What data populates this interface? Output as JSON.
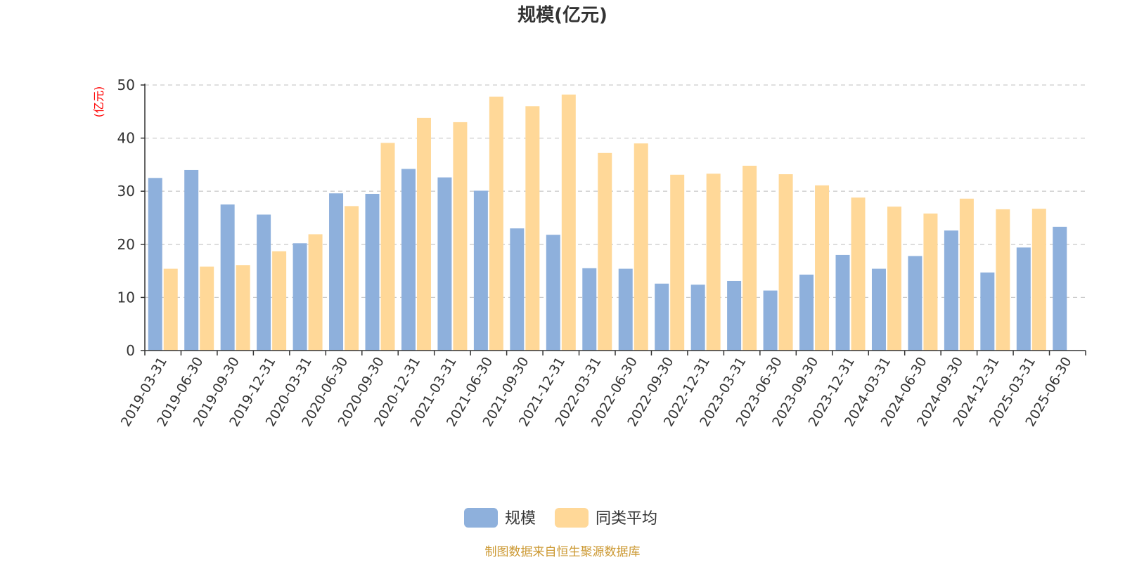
{
  "chart_data": {
    "type": "bar",
    "title": "规模(亿元)",
    "ylabel": "(亿元)",
    "ylim": [
      0,
      50
    ],
    "yticks": [
      0,
      10,
      20,
      30,
      40,
      50
    ],
    "grid": true,
    "legend_position": "bottom",
    "categories": [
      "2019-03-31",
      "2019-06-30",
      "2019-09-30",
      "2019-12-31",
      "2020-03-31",
      "2020-06-30",
      "2020-09-30",
      "2020-12-31",
      "2021-03-31",
      "2021-06-30",
      "2021-09-30",
      "2021-12-31",
      "2022-03-31",
      "2022-06-30",
      "2022-09-30",
      "2022-12-31",
      "2023-03-31",
      "2023-06-30",
      "2023-09-30",
      "2023-12-31",
      "2024-03-31",
      "2024-06-30",
      "2024-09-30",
      "2024-12-31",
      "2025-03-31",
      "2025-06-30"
    ],
    "series": [
      {
        "name": "规模",
        "color": "#8eb0dc",
        "values": [
          32.5,
          34.0,
          27.5,
          25.6,
          20.2,
          29.6,
          29.5,
          34.2,
          32.6,
          30.1,
          23.0,
          21.8,
          15.5,
          15.4,
          12.6,
          12.4,
          13.1,
          11.3,
          14.3,
          18.0,
          15.4,
          17.8,
          22.6,
          14.7,
          19.4,
          23.3
        ]
      },
      {
        "name": "同类平均",
        "color": "#ffd898",
        "values": [
          15.4,
          15.8,
          16.1,
          18.7,
          21.9,
          27.2,
          39.1,
          43.8,
          43.0,
          47.8,
          46.0,
          48.2,
          37.2,
          39.0,
          33.1,
          33.3,
          34.8,
          33.2,
          31.1,
          28.8,
          27.1,
          25.8,
          28.6,
          26.6,
          26.7,
          null
        ]
      }
    ]
  },
  "source_text": "制图数据来自恒生聚源数据库",
  "colors": {
    "axis": "#333333",
    "grid": "#cccccc",
    "unit_label": "#ff0000",
    "source_text": "#cc9933"
  }
}
